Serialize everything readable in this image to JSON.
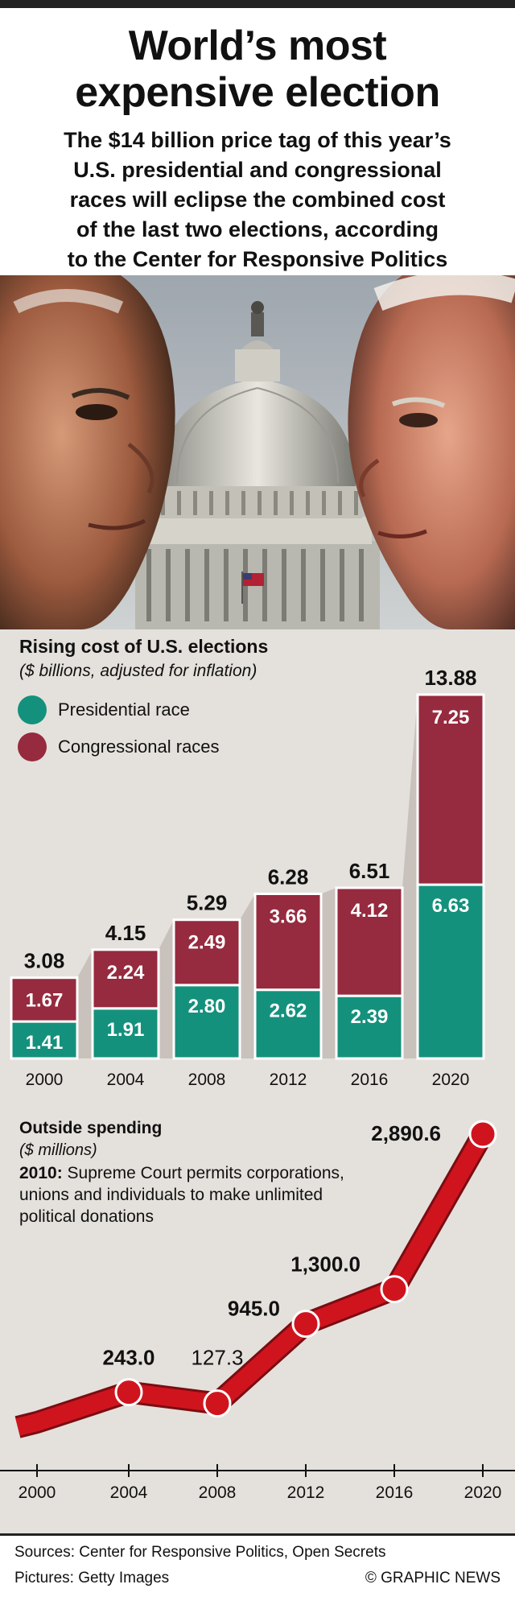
{
  "header": {
    "title_line1": "World’s most",
    "title_line2": "expensive election",
    "subtitle_lines": [
      "The $14 billion price tag of this year’s",
      "U.S. presidential and congressional",
      "races will eclipse the combined cost",
      "of the last two elections, according",
      "to the Center for Responsive Politics"
    ]
  },
  "colors": {
    "presidential": "#14917c",
    "congressional": "#962a3e",
    "line": "#d0141e",
    "background": "#e4e1dc",
    "connector": "#c9c2bc"
  },
  "chart_data": [
    {
      "type": "bar",
      "stacked": true,
      "title": "Rising cost of U.S. elections",
      "subtitle": "($ billions, adjusted for inflation)",
      "categories": [
        "2000",
        "2004",
        "2008",
        "2012",
        "2016",
        "2020"
      ],
      "series": [
        {
          "name": "Presidential race",
          "values": [
            1.41,
            1.91,
            2.8,
            2.62,
            2.39,
            6.63
          ],
          "labels": [
            "1.41",
            "1.91",
            "2.80",
            "2.62",
            "2.39",
            "6.63"
          ]
        },
        {
          "name": "Congressional races",
          "values": [
            1.67,
            2.24,
            2.49,
            3.66,
            4.12,
            7.25
          ],
          "labels": [
            "1.67",
            "2.24",
            "2.49",
            "3.66",
            "4.12",
            "7.25"
          ]
        }
      ],
      "totals": [
        3.08,
        4.15,
        5.29,
        6.28,
        6.51,
        13.88
      ],
      "total_labels": [
        "3.08",
        "4.15",
        "5.29",
        "6.28",
        "6.51",
        "13.88"
      ],
      "ylim": [
        0,
        13.88
      ],
      "legend": "top-left"
    },
    {
      "type": "line",
      "title": "Outside spending",
      "subtitle": "($ millions)",
      "note_bold": "2010:",
      "note_text": " Supreme Court permits corporations, unions and individuals to make unlimited political donations",
      "x": [
        "2000",
        "2004",
        "2008",
        "2012",
        "2016",
        "2020"
      ],
      "values": [
        null,
        243.0,
        127.3,
        945.0,
        1300.0,
        2890.6
      ],
      "point_labels": [
        "",
        "243.0",
        "127.3",
        "945.0",
        "1,300.0",
        "2,890.6"
      ],
      "ylim": [
        0,
        2890.6
      ]
    }
  ],
  "footer": {
    "sources": "Sources: Center for Responsive Politics, Open Secrets",
    "pictures": "Pictures: Getty Images",
    "credit": "© GRAPHIC NEWS"
  }
}
